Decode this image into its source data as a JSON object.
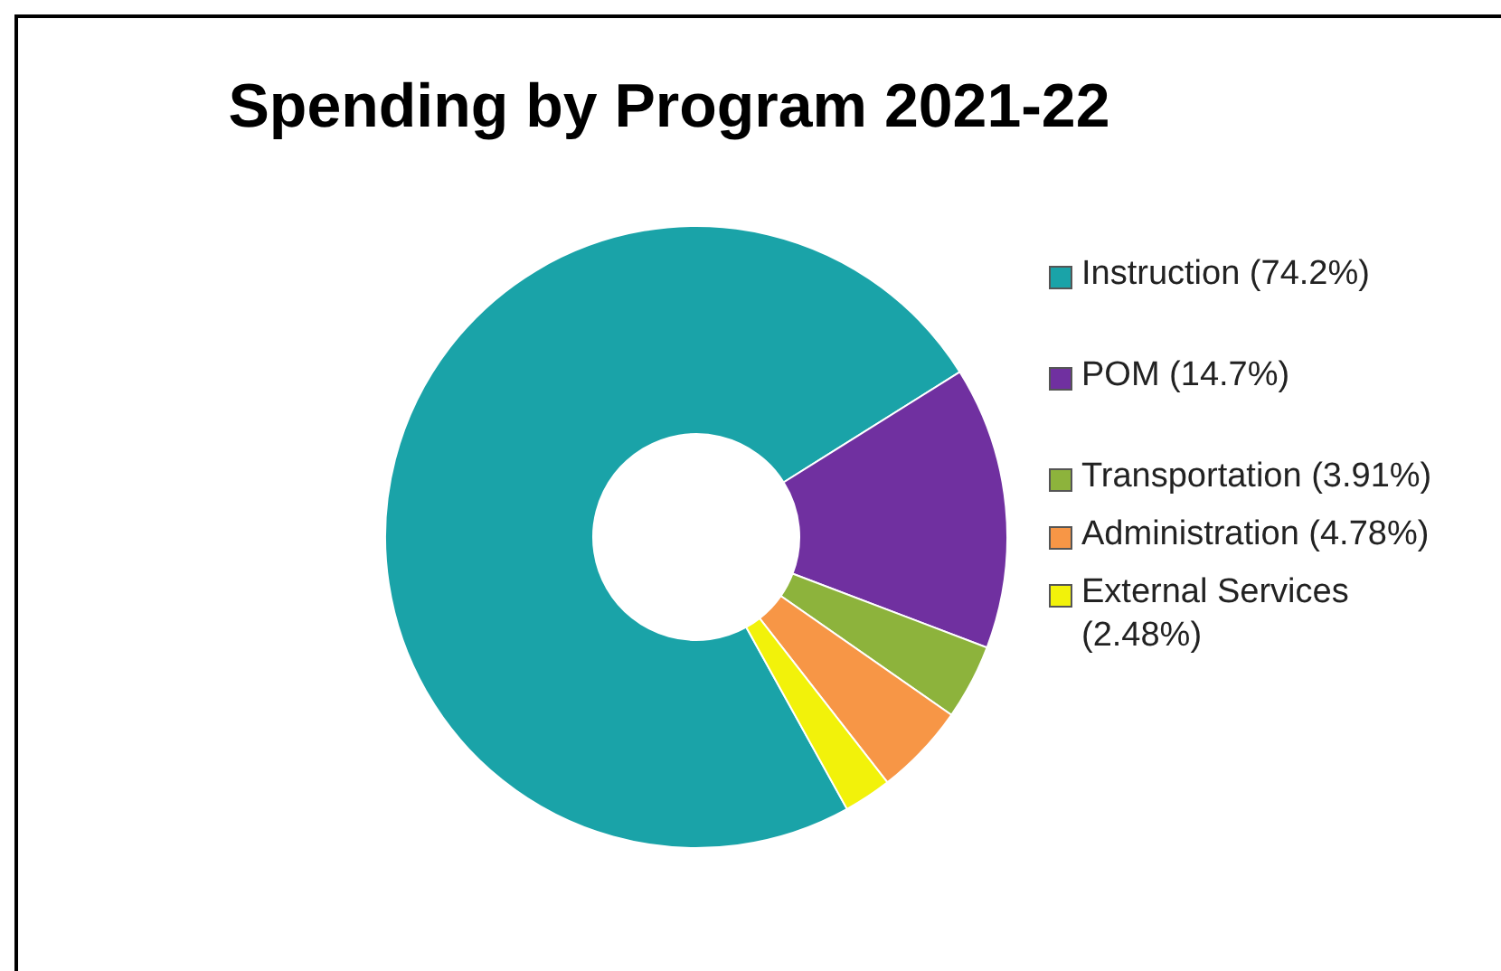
{
  "chart_data": {
    "type": "donut",
    "title": "Spending by Program 2021-22",
    "categories": [
      "Instruction (74.2%)",
      "POM (14.7%)",
      "Transportation (3.91%)",
      "Administration (4.78%)",
      "External Services (2.48%)"
    ],
    "values": [
      74.2,
      14.7,
      3.91,
      4.78,
      2.48
    ],
    "colors": [
      "#1aa3a8",
      "#7030a0",
      "#8db33c",
      "#f79646",
      "#f2f20a"
    ],
    "legend": "right"
  }
}
